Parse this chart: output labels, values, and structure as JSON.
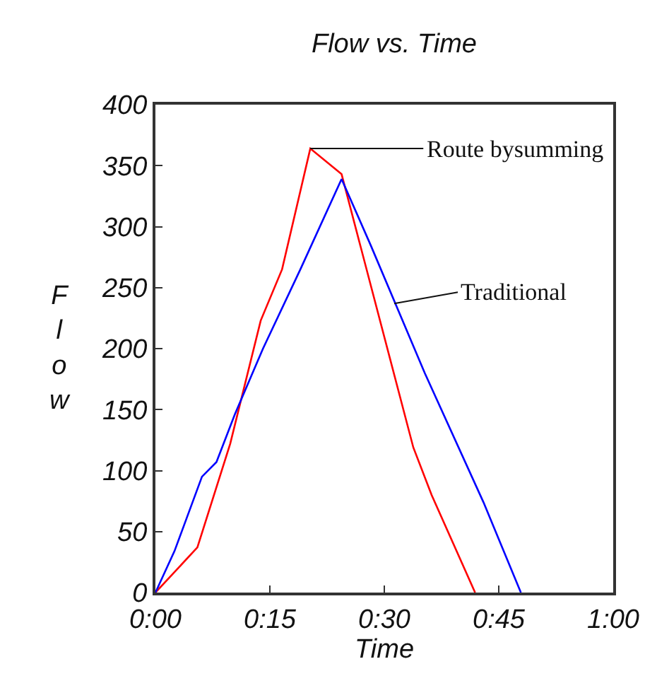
{
  "chart_data": {
    "type": "line",
    "title": "Flow vs. Time",
    "xlabel": "Time",
    "ylabel": "Flow",
    "series": [
      {
        "color": "#ff0000",
        "x": [
          0,
          5.5,
          9.8,
          13.8,
          16.6,
          20.3,
          24.4,
          33.8,
          36.2,
          41.9
        ],
        "values": [
          0,
          37,
          122,
          223,
          265,
          364,
          343,
          119,
          80,
          0
        ]
      },
      {
        "color": "#0000ff",
        "x": [
          0,
          2.5,
          6.1,
          8,
          10.4,
          14.1,
          19,
          24.4,
          28.2,
          35.3,
          43,
          47.9
        ],
        "values": [
          0,
          34,
          95,
          107,
          146,
          200,
          265,
          339,
          285,
          180,
          74,
          0
        ]
      }
    ],
    "annotations": [
      {
        "text": "Route bysumming",
        "x": 20.3,
        "y": 364
      },
      {
        "text": "Traditional",
        "x": 31.3,
        "y": 237
      }
    ],
    "xlim": [
      0,
      60
    ],
    "xticks": [
      {
        "value": 0,
        "label": "0:00"
      },
      {
        "value": 15,
        "label": "0:15"
      },
      {
        "value": 30,
        "label": "0:30"
      },
      {
        "value": 45,
        "label": "0:45"
      },
      {
        "value": 60,
        "label": "1:00"
      }
    ],
    "ylim": [
      0,
      400
    ],
    "yticks": [
      0,
      50,
      100,
      150,
      200,
      250,
      300,
      350,
      400
    ],
    "marker": "none",
    "line_style": "solid"
  }
}
